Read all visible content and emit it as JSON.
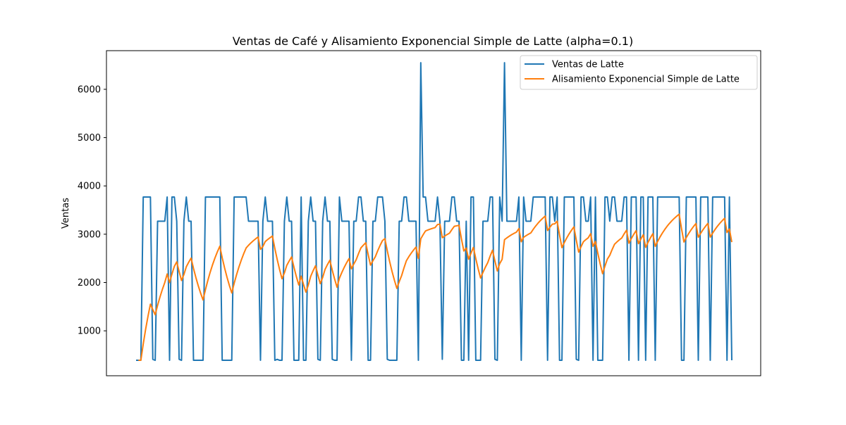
{
  "chart_data": {
    "type": "line",
    "title": "Ventas de Café y Alisamiento Exponencial Simple de Latte (alpha=0.1)",
    "xlabel": "",
    "ylabel": "Ventas",
    "ylim": [
      70,
      6800
    ],
    "yticks": [
      1000,
      2000,
      3000,
      4000,
      5000,
      6000
    ],
    "x_ticks_visible": false,
    "grid": false,
    "legend_position": "top-right",
    "series": [
      {
        "name": "Ventas de Latte",
        "color": "#1f77b4",
        "values": [
          390,
          390,
          390,
          3770,
          3770,
          3770,
          3770,
          410,
          390,
          3270,
          3270,
          3270,
          3270,
          3770,
          390,
          3770,
          3770,
          3270,
          410,
          390,
          3270,
          3770,
          3270,
          3270,
          390,
          390,
          390,
          390,
          390,
          3770,
          3770,
          3770,
          3770,
          3770,
          3770,
          3770,
          390,
          390,
          390,
          390,
          390,
          3770,
          3770,
          3770,
          3770,
          3770,
          3770,
          3270,
          3270,
          3270,
          3270,
          3270,
          390,
          3270,
          3770,
          3270,
          3270,
          3270,
          390,
          410,
          390,
          390,
          3270,
          3770,
          3270,
          3270,
          390,
          390,
          390,
          3770,
          390,
          390,
          3270,
          3770,
          3270,
          3270,
          410,
          390,
          3270,
          3770,
          3270,
          3270,
          410,
          390,
          390,
          3770,
          3270,
          3270,
          3270,
          3270,
          390,
          3270,
          3270,
          3770,
          3770,
          3270,
          3270,
          390,
          390,
          3270,
          3270,
          3770,
          3770,
          3770,
          3270,
          410,
          390,
          390,
          390,
          390,
          3270,
          3270,
          3770,
          3770,
          3270,
          3270,
          3270,
          3270,
          390,
          6550,
          3770,
          3770,
          3270,
          3270,
          3270,
          3270,
          3770,
          3270,
          410,
          3270,
          3270,
          3270,
          3770,
          3770,
          3270,
          3270,
          390,
          390,
          3270,
          390,
          3770,
          3770,
          390,
          390,
          390,
          3270,
          3270,
          3270,
          3770,
          3770,
          410,
          390,
          3770,
          3270,
          6550,
          3270,
          3270,
          3270,
          3270,
          3270,
          3770,
          390,
          3770,
          3270,
          3270,
          3270,
          3770,
          3770,
          3770,
          3770,
          3770,
          3770,
          390,
          3770,
          3770,
          3270,
          3770,
          390,
          390,
          3770,
          3770,
          3770,
          3770,
          3770,
          410,
          390,
          3770,
          3770,
          3270,
          3270,
          3770,
          390,
          3770,
          390,
          390,
          390,
          3770,
          3770,
          3270,
          3770,
          3770,
          3270,
          3270,
          3270,
          3770,
          3770,
          390,
          3770,
          3770,
          3770,
          390,
          3770,
          3770,
          390,
          3770,
          3770,
          3770,
          390,
          3770,
          3770,
          3770,
          3770,
          3770,
          3770,
          3770,
          3770,
          3770,
          3770,
          390,
          390,
          3770,
          3770,
          3770,
          3770,
          3770,
          390,
          3770,
          3770,
          3770,
          3770,
          390,
          3770,
          3770,
          3770,
          3770,
          3770,
          3770,
          390,
          3770,
          390
        ]
      },
      {
        "name": "Alisamiento Exponencial Simple de Latte",
        "color": "#ff7f0e",
        "alpha": 0.1,
        "start_index": 1
      }
    ]
  }
}
